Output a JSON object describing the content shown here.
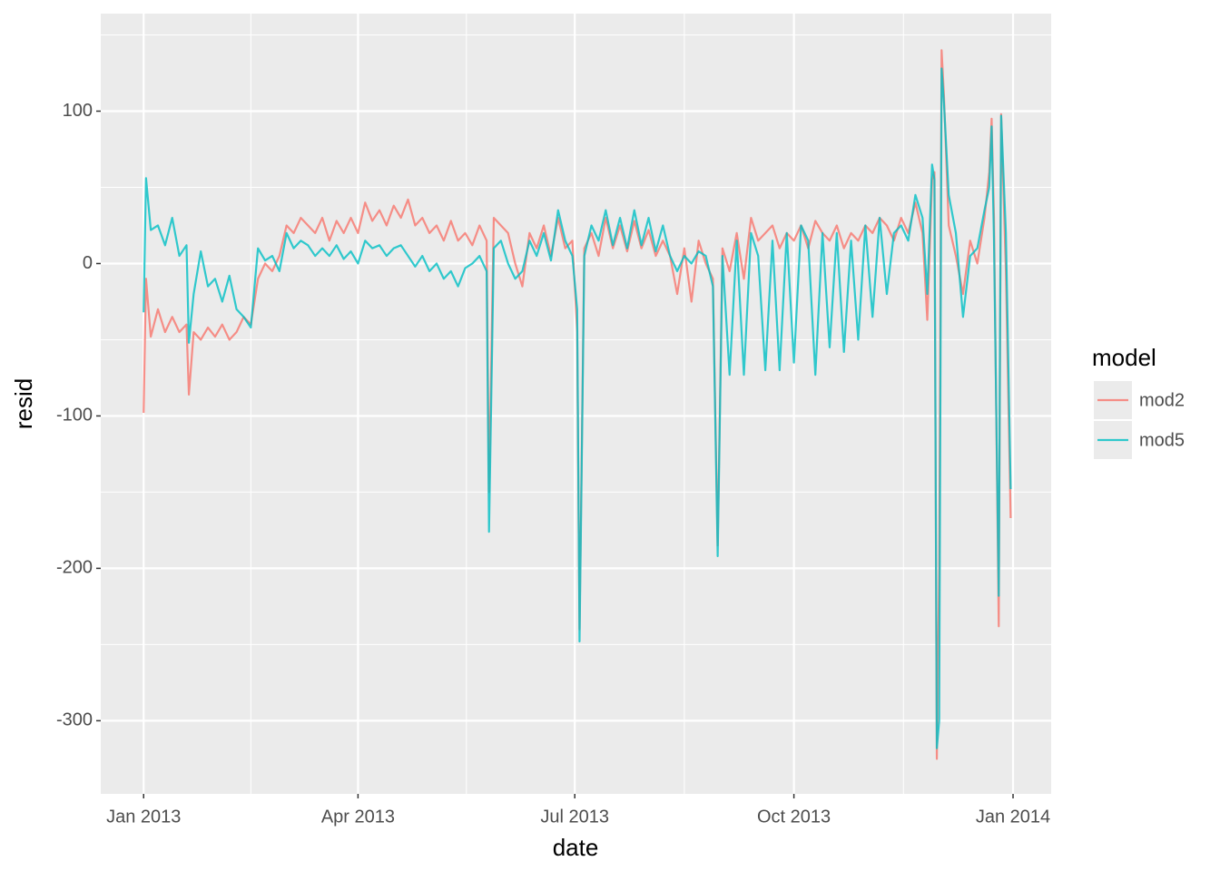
{
  "chart_data": {
    "type": "line",
    "x_label": "date",
    "y_label": "resid",
    "legend_title": "model",
    "legend_position": "right",
    "grid": true,
    "x": [
      0,
      1,
      3,
      6,
      9,
      12,
      15,
      18,
      19,
      21,
      24,
      27,
      30,
      33,
      36,
      39,
      42,
      45,
      48,
      51,
      54,
      57,
      60,
      63,
      66,
      69,
      72,
      75,
      78,
      81,
      84,
      87,
      90,
      93,
      96,
      99,
      102,
      105,
      108,
      111,
      114,
      117,
      120,
      123,
      126,
      129,
      132,
      135,
      138,
      141,
      144,
      145,
      147,
      150,
      153,
      156,
      159,
      162,
      165,
      168,
      171,
      174,
      177,
      180,
      182,
      183,
      185,
      188,
      191,
      194,
      197,
      200,
      203,
      206,
      209,
      212,
      215,
      218,
      221,
      224,
      227,
      230,
      233,
      236,
      239,
      241,
      243,
      246,
      249,
      252,
      255,
      258,
      261,
      264,
      267,
      270,
      273,
      276,
      279,
      282,
      285,
      288,
      291,
      294,
      297,
      300,
      303,
      306,
      309,
      312,
      315,
      318,
      321,
      324,
      327,
      329,
      331,
      332,
      333,
      334,
      335,
      336,
      338,
      341,
      344,
      347,
      350,
      353,
      355,
      356,
      357,
      359,
      360,
      362,
      364
    ],
    "xlim": [
      -18,
      381
    ],
    "xticks": [
      {
        "value": 0,
        "label": "Jan 2013"
      },
      {
        "value": 90,
        "label": "Apr 2013"
      },
      {
        "value": 181,
        "label": "Jul 2013"
      },
      {
        "value": 273,
        "label": "Oct 2013"
      },
      {
        "value": 365,
        "label": "Jan 2014"
      }
    ],
    "ylim": [
      -348,
      164
    ],
    "yticks": [
      -300,
      -200,
      -100,
      0,
      100
    ],
    "series": [
      {
        "name": "mod2",
        "color": "#F8766D",
        "values": [
          -98,
          -10,
          -48,
          -30,
          -45,
          -35,
          -45,
          -40,
          -86,
          -45,
          -50,
          -42,
          -48,
          -40,
          -50,
          -45,
          -35,
          -40,
          -10,
          0,
          -5,
          5,
          25,
          20,
          30,
          25,
          20,
          30,
          15,
          28,
          20,
          30,
          20,
          40,
          28,
          35,
          25,
          38,
          30,
          42,
          25,
          30,
          20,
          25,
          15,
          28,
          15,
          20,
          12,
          25,
          15,
          -150,
          30,
          25,
          20,
          0,
          -15,
          20,
          10,
          25,
          5,
          30,
          10,
          15,
          -45,
          -240,
          10,
          20,
          5,
          30,
          10,
          25,
          8,
          28,
          10,
          22,
          5,
          15,
          5,
          -20,
          10,
          -25,
          15,
          0,
          -10,
          -185,
          10,
          -5,
          20,
          -10,
          30,
          15,
          20,
          25,
          10,
          20,
          15,
          25,
          10,
          28,
          20,
          15,
          25,
          10,
          20,
          15,
          25,
          20,
          30,
          25,
          15,
          30,
          20,
          40,
          20,
          -37,
          55,
          60,
          -325,
          -200,
          140,
          110,
          25,
          5,
          -20,
          15,
          0,
          30,
          60,
          95,
          30,
          -238,
          98,
          -5,
          -167
        ]
      },
      {
        "name": "mod5",
        "color": "#00BFC4",
        "values": [
          -32,
          56,
          22,
          25,
          12,
          30,
          5,
          12,
          -52,
          -20,
          8,
          -15,
          -10,
          -25,
          -8,
          -30,
          -35,
          -42,
          10,
          2,
          5,
          -5,
          20,
          10,
          15,
          12,
          5,
          10,
          5,
          12,
          3,
          8,
          0,
          15,
          10,
          12,
          5,
          10,
          12,
          5,
          -2,
          5,
          -5,
          0,
          -10,
          -5,
          -15,
          -3,
          0,
          5,
          -5,
          -176,
          10,
          15,
          0,
          -10,
          -5,
          15,
          5,
          20,
          2,
          35,
          15,
          5,
          -30,
          -248,
          5,
          25,
          15,
          35,
          12,
          30,
          10,
          35,
          12,
          30,
          8,
          25,
          5,
          -5,
          5,
          0,
          8,
          5,
          -15,
          -192,
          5,
          -73,
          15,
          -73,
          20,
          5,
          -70,
          15,
          -70,
          20,
          -65,
          25,
          15,
          -73,
          20,
          -55,
          20,
          -58,
          15,
          -50,
          25,
          -35,
          30,
          -20,
          20,
          25,
          15,
          45,
          30,
          -20,
          65,
          55,
          -318,
          -300,
          128,
          105,
          45,
          20,
          -35,
          5,
          10,
          35,
          50,
          90,
          15,
          -218,
          97,
          20,
          -148
        ]
      }
    ]
  }
}
